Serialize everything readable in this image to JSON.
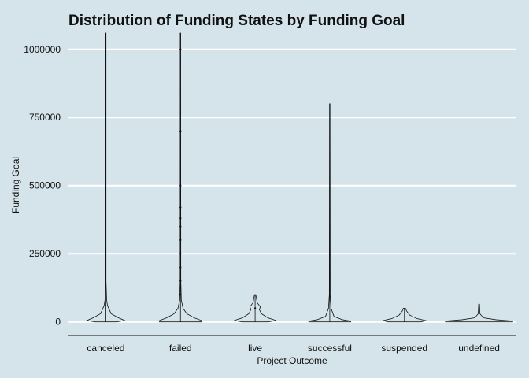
{
  "chart_data": {
    "type": "violin",
    "title": "Distribution of Funding States by Funding Goal",
    "xlabel": "Project Outcome",
    "ylabel": "Funding Goal",
    "ylim": [
      -50000,
      1060000
    ],
    "yticks": [
      0,
      250000,
      500000,
      750000,
      1000000
    ],
    "ytick_labels": [
      "0",
      "250000",
      "500000",
      "750000",
      "1000000"
    ],
    "grid": "horizontal",
    "line_color": "#111111",
    "background_color": "#d5e3ea",
    "grid_color": "#ffffff",
    "categories": [
      "canceled",
      "failed",
      "live",
      "successful",
      "suspended",
      "undefined"
    ],
    "series": [
      {
        "category": "canceled",
        "min": 0,
        "max": 1060000,
        "profile": [
          [
            0,
            0.5
          ],
          [
            5000,
            0.9
          ],
          [
            15000,
            0.6
          ],
          [
            30000,
            0.25
          ],
          [
            60000,
            0.08
          ],
          [
            80000,
            0.04
          ],
          [
            150000,
            0.01
          ],
          [
            1060000,
            0.01
          ]
        ],
        "outliers": []
      },
      {
        "category": "failed",
        "min": 0,
        "max": 1060000,
        "profile": [
          [
            0,
            1.0
          ],
          [
            5000,
            1.0
          ],
          [
            15000,
            0.65
          ],
          [
            30000,
            0.3
          ],
          [
            50000,
            0.12
          ],
          [
            80000,
            0.04
          ],
          [
            150000,
            0.015
          ],
          [
            1060000,
            0.01
          ]
        ],
        "outliers": [
          1000000,
          700000,
          500000,
          420000,
          380000,
          350000,
          300000,
          250000,
          200000,
          150000,
          100000
        ]
      },
      {
        "category": "live",
        "min": 0,
        "max": 100000,
        "profile": [
          [
            0,
            0.6
          ],
          [
            5000,
            1.0
          ],
          [
            15000,
            0.6
          ],
          [
            30000,
            0.3
          ],
          [
            45000,
            0.2
          ],
          [
            55000,
            0.25
          ],
          [
            70000,
            0.1
          ],
          [
            100000,
            0.03
          ]
        ],
        "outliers": [
          50000
        ]
      },
      {
        "category": "successful",
        "min": 0,
        "max": 800000,
        "profile": [
          [
            0,
            1.0
          ],
          [
            3000,
            1.0
          ],
          [
            8000,
            0.6
          ],
          [
            20000,
            0.2
          ],
          [
            50000,
            0.06
          ],
          [
            100000,
            0.02
          ],
          [
            800000,
            0.01
          ]
        ],
        "outliers": []
      },
      {
        "category": "suspended",
        "min": 0,
        "max": 50000,
        "profile": [
          [
            0,
            0.8
          ],
          [
            5000,
            1.0
          ],
          [
            12000,
            0.6
          ],
          [
            25000,
            0.25
          ],
          [
            40000,
            0.1
          ],
          [
            50000,
            0.05
          ]
        ],
        "outliers": []
      },
      {
        "category": "undefined",
        "min": 0,
        "max": 65000,
        "profile": [
          [
            0,
            1.6
          ],
          [
            3000,
            1.6
          ],
          [
            8000,
            0.8
          ],
          [
            15000,
            0.2
          ],
          [
            30000,
            0.04
          ],
          [
            65000,
            0.02
          ]
        ],
        "outliers": []
      }
    ]
  }
}
